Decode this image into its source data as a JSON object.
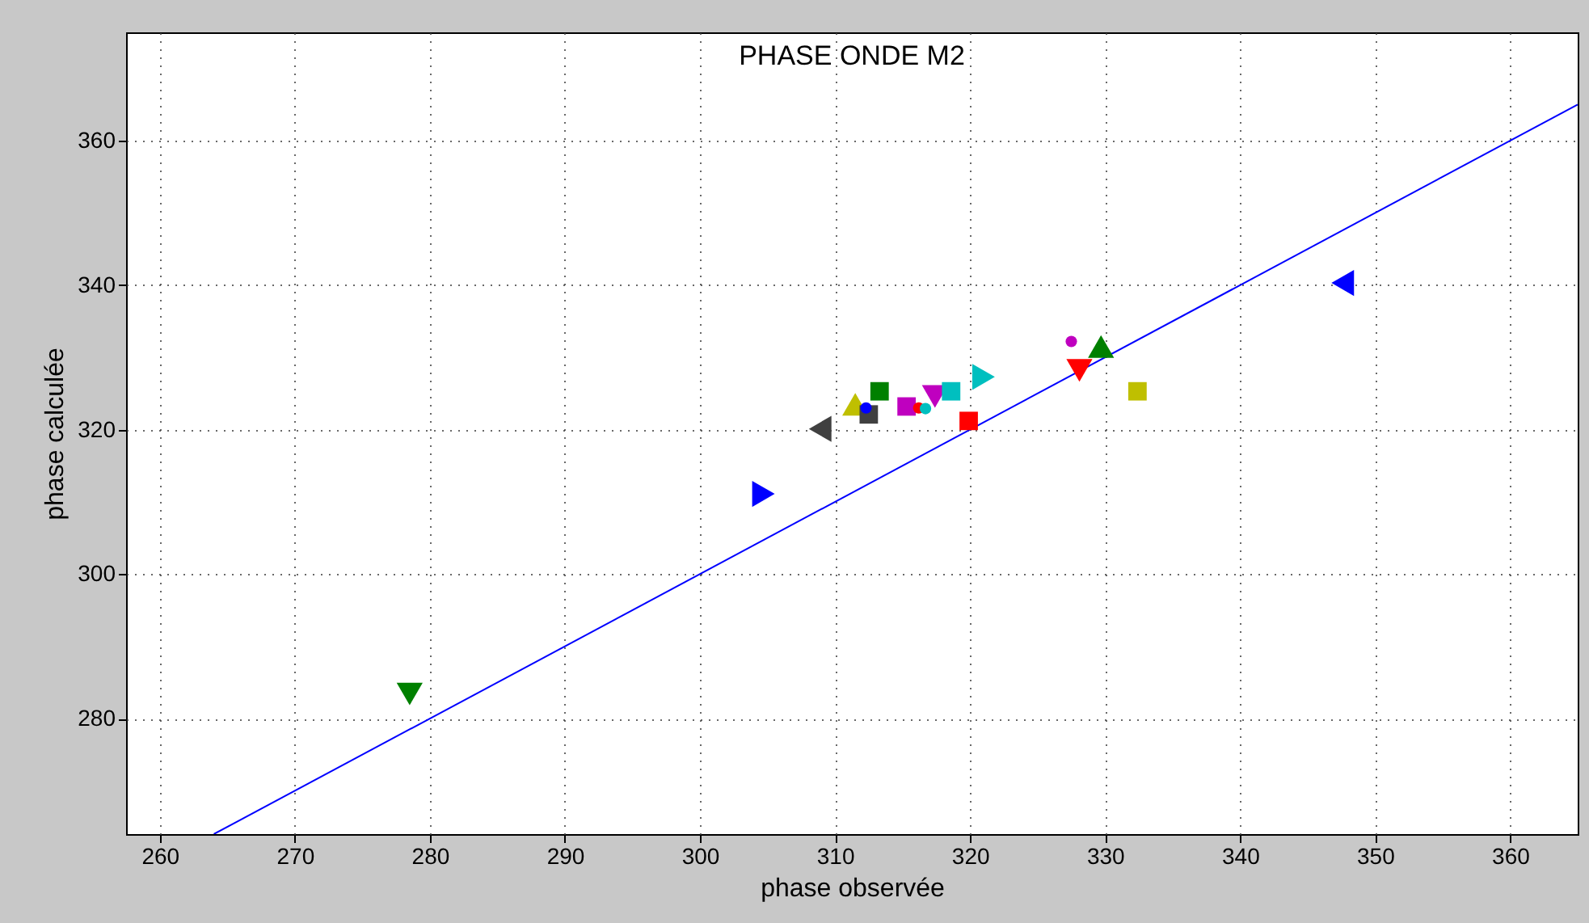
{
  "chart_data": {
    "type": "scatter",
    "title": "PHASE ONDE M2",
    "xlabel": "phase observée",
    "ylabel": "phase calculée",
    "xlim": [
      257.5,
      365
    ],
    "ylim": [
      264,
      375
    ],
    "xticks": [
      260,
      270,
      280,
      290,
      300,
      310,
      320,
      330,
      340,
      350,
      360
    ],
    "yticks": [
      280,
      300,
      320,
      340,
      360
    ],
    "grid": true,
    "series": [
      {
        "color": "#0000ff",
        "type": "line",
        "marker": "none",
        "line_style": "solid",
        "x": [
          264,
          365
        ],
        "values": [
          264,
          365
        ]
      },
      {
        "color": "#008000",
        "marker": "triangle-down",
        "x": [
          278.5
        ],
        "values": [
          283.4
        ]
      },
      {
        "color": "#0000ff",
        "marker": "triangle-right",
        "x": [
          304.7
        ],
        "values": [
          311.1
        ]
      },
      {
        "color": "#404040",
        "marker": "triangle-left",
        "x": [
          308.9
        ],
        "values": [
          320.1
        ]
      },
      {
        "color": "#bfbf00",
        "marker": "triangle-up",
        "x": [
          311.5
        ],
        "values": [
          323.5
        ]
      },
      {
        "color": "#404040",
        "marker": "square",
        "x": [
          312.5
        ],
        "values": [
          322.1
        ]
      },
      {
        "color": "#0000ff",
        "marker": "circle",
        "x": [
          312.3
        ],
        "values": [
          323.0
        ]
      },
      {
        "color": "#008000",
        "marker": "square",
        "x": [
          313.3
        ],
        "values": [
          325.3
        ]
      },
      {
        "color": "#bf00bf",
        "marker": "square",
        "x": [
          315.3
        ],
        "values": [
          323.2
        ]
      },
      {
        "color": "#ff0000",
        "marker": "circle",
        "x": [
          316.2
        ],
        "values": [
          323.0
        ]
      },
      {
        "color": "#00bfbf",
        "marker": "circle",
        "x": [
          316.7
        ],
        "values": [
          322.9
        ]
      },
      {
        "color": "#bf00bf",
        "marker": "triangle-down",
        "x": [
          317.4
        ],
        "values": [
          324.6
        ]
      },
      {
        "color": "#00bfbf",
        "marker": "square",
        "x": [
          318.6
        ],
        "values": [
          325.3
        ]
      },
      {
        "color": "#ff0000",
        "marker": "square",
        "x": [
          319.9
        ],
        "values": [
          321.2
        ]
      },
      {
        "color": "#00bfbf",
        "marker": "triangle-right",
        "x": [
          321.0
        ],
        "values": [
          327.3
        ]
      },
      {
        "color": "#bf00bf",
        "marker": "circle",
        "x": [
          327.5
        ],
        "values": [
          332.2
        ]
      },
      {
        "color": "#ff0000",
        "marker": "triangle-down",
        "x": [
          328.1
        ],
        "values": [
          328.2
        ]
      },
      {
        "color": "#008000",
        "marker": "triangle-up",
        "x": [
          329.7
        ],
        "values": [
          331.5
        ]
      },
      {
        "color": "#bfbf00",
        "marker": "square",
        "x": [
          332.4
        ],
        "values": [
          325.3
        ]
      },
      {
        "color": "#0000ff",
        "marker": "triangle-left",
        "x": [
          347.6
        ],
        "values": [
          340.3
        ]
      }
    ]
  }
}
